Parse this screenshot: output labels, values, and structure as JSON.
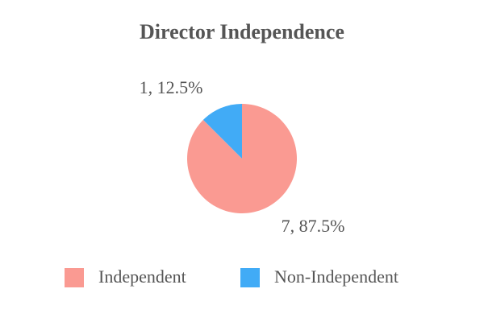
{
  "chart_data": {
    "type": "pie",
    "title": "Director Independence",
    "categories": [
      "Independent",
      "Non-Independent"
    ],
    "values": [
      7,
      1
    ],
    "value_labels": [
      "7, 87.5%",
      "1, 12.5%"
    ],
    "colors": [
      "#fa9a92",
      "#41abf6"
    ],
    "legend": "bottom"
  }
}
